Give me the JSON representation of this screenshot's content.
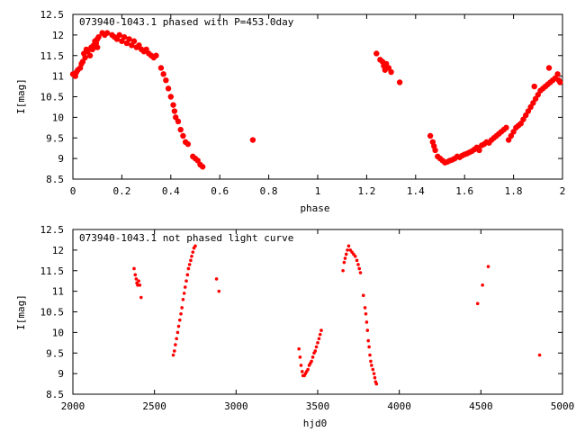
{
  "chart_data": [
    {
      "type": "scatter",
      "title": "073940-1043.1 phased with P=453.0day",
      "xlabel": "phase",
      "ylabel": "I[mag]",
      "xlim": [
        0,
        2
      ],
      "ylim": [
        12.5,
        8.5
      ],
      "y_inverted": true,
      "xticks": [
        0,
        0.2,
        0.4,
        0.6,
        0.8,
        1,
        1.2,
        1.4,
        1.6,
        1.8,
        2
      ],
      "xtick_labels": [
        "0",
        "0.2",
        "0.4",
        "0.6",
        "0.8",
        "1",
        "1.2",
        "1.4",
        "1.6",
        "1.8",
        "2"
      ],
      "yticks": [
        8.5,
        9,
        9.5,
        10,
        10.5,
        11,
        11.5,
        12,
        12.5
      ],
      "ytick_labels": [
        "8.5",
        "9",
        "9.5",
        "10",
        "10.5",
        "11",
        "11.5",
        "12",
        "12.5"
      ],
      "grid": false,
      "marker_color": "#ff0000",
      "points": [
        [
          0.0,
          11.05
        ],
        [
          0.01,
          11.0
        ],
        [
          0.015,
          11.1
        ],
        [
          0.02,
          11.15
        ],
        [
          0.03,
          11.2
        ],
        [
          0.035,
          11.3
        ],
        [
          0.04,
          11.35
        ],
        [
          0.05,
          11.45
        ],
        [
          0.045,
          11.55
        ],
        [
          0.055,
          11.65
        ],
        [
          0.06,
          11.6
        ],
        [
          0.07,
          11.5
        ],
        [
          0.075,
          11.7
        ],
        [
          0.08,
          11.65
        ],
        [
          0.085,
          11.75
        ],
        [
          0.09,
          11.85
        ],
        [
          0.095,
          11.8
        ],
        [
          0.1,
          11.9
        ],
        [
          0.1,
          11.7
        ],
        [
          0.105,
          11.95
        ],
        [
          0.12,
          12.05
        ],
        [
          0.13,
          12.0
        ],
        [
          0.14,
          12.05
        ],
        [
          0.16,
          12.0
        ],
        [
          0.17,
          11.95
        ],
        [
          0.18,
          11.9
        ],
        [
          0.19,
          12.0
        ],
        [
          0.2,
          11.85
        ],
        [
          0.21,
          11.95
        ],
        [
          0.22,
          11.8
        ],
        [
          0.23,
          11.9
        ],
        [
          0.24,
          11.75
        ],
        [
          0.25,
          11.85
        ],
        [
          0.26,
          11.7
        ],
        [
          0.27,
          11.75
        ],
        [
          0.28,
          11.65
        ],
        [
          0.29,
          11.6
        ],
        [
          0.3,
          11.65
        ],
        [
          0.31,
          11.55
        ],
        [
          0.32,
          11.5
        ],
        [
          0.33,
          11.45
        ],
        [
          0.34,
          11.5
        ],
        [
          0.36,
          11.2
        ],
        [
          0.37,
          11.05
        ],
        [
          0.38,
          10.9
        ],
        [
          0.39,
          10.7
        ],
        [
          0.4,
          10.5
        ],
        [
          0.41,
          10.3
        ],
        [
          0.415,
          10.15
        ],
        [
          0.42,
          10.0
        ],
        [
          0.43,
          9.9
        ],
        [
          0.44,
          9.7
        ],
        [
          0.45,
          9.55
        ],
        [
          0.46,
          9.4
        ],
        [
          0.47,
          9.35
        ],
        [
          0.49,
          9.05
        ],
        [
          0.5,
          9.0
        ],
        [
          0.51,
          8.95
        ],
        [
          0.52,
          8.85
        ],
        [
          0.53,
          8.8
        ],
        [
          0.735,
          9.45
        ],
        [
          1.24,
          11.55
        ],
        [
          1.255,
          11.4
        ],
        [
          1.265,
          11.35
        ],
        [
          1.27,
          11.25
        ],
        [
          1.275,
          11.15
        ],
        [
          1.28,
          11.3
        ],
        [
          1.29,
          11.2
        ],
        [
          1.3,
          11.1
        ],
        [
          1.335,
          10.85
        ],
        [
          1.46,
          9.55
        ],
        [
          1.47,
          9.4
        ],
        [
          1.475,
          9.3
        ],
        [
          1.48,
          9.2
        ],
        [
          1.49,
          9.05
        ],
        [
          1.5,
          9.0
        ],
        [
          1.51,
          8.95
        ],
        [
          1.52,
          8.9
        ],
        [
          1.53,
          8.92
        ],
        [
          1.54,
          8.95
        ],
        [
          1.55,
          8.97
        ],
        [
          1.56,
          9.0
        ],
        [
          1.57,
          9.05
        ],
        [
          1.58,
          9.03
        ],
        [
          1.59,
          9.07
        ],
        [
          1.6,
          9.1
        ],
        [
          1.61,
          9.12
        ],
        [
          1.62,
          9.15
        ],
        [
          1.63,
          9.18
        ],
        [
          1.64,
          9.22
        ],
        [
          1.65,
          9.27
        ],
        [
          1.66,
          9.2
        ],
        [
          1.67,
          9.32
        ],
        [
          1.68,
          9.35
        ],
        [
          1.69,
          9.4
        ],
        [
          1.7,
          9.38
        ],
        [
          1.71,
          9.45
        ],
        [
          1.72,
          9.5
        ],
        [
          1.73,
          9.55
        ],
        [
          1.74,
          9.6
        ],
        [
          1.75,
          9.65
        ],
        [
          1.76,
          9.7
        ],
        [
          1.77,
          9.75
        ],
        [
          1.78,
          9.45
        ],
        [
          1.79,
          9.55
        ],
        [
          1.8,
          9.65
        ],
        [
          1.81,
          9.75
        ],
        [
          1.82,
          9.8
        ],
        [
          1.83,
          9.85
        ],
        [
          1.84,
          9.95
        ],
        [
          1.85,
          10.05
        ],
        [
          1.86,
          10.15
        ],
        [
          1.87,
          10.25
        ],
        [
          1.88,
          10.35
        ],
        [
          1.89,
          10.45
        ],
        [
          1.9,
          10.55
        ],
        [
          1.91,
          10.65
        ],
        [
          1.92,
          10.7
        ],
        [
          1.93,
          10.75
        ],
        [
          1.94,
          10.8
        ],
        [
          1.95,
          10.85
        ],
        [
          1.96,
          10.9
        ],
        [
          1.97,
          10.95
        ],
        [
          1.98,
          11.05
        ],
        [
          1.99,
          10.85
        ],
        [
          1.985,
          10.9
        ],
        [
          1.885,
          10.75
        ],
        [
          1.945,
          11.2
        ]
      ]
    },
    {
      "type": "scatter",
      "title": "073940-1043.1 not phased light curve",
      "xlabel": "hjd0",
      "ylabel": "I[mag]",
      "xlim": [
        2000,
        5000
      ],
      "ylim": [
        12.5,
        8.5
      ],
      "y_inverted": true,
      "xticks": [
        2000,
        2500,
        3000,
        3500,
        4000,
        4500,
        5000
      ],
      "xtick_labels": [
        "2000",
        "2500",
        "3000",
        "3500",
        "4000",
        "4500",
        "5000"
      ],
      "yticks": [
        8.5,
        9,
        9.5,
        10,
        10.5,
        11,
        11.5,
        12,
        12.5
      ],
      "ytick_labels": [
        "8.5",
        "9",
        "9.5",
        "10",
        "10.5",
        "11",
        "11.5",
        "12",
        "12.5"
      ],
      "grid": false,
      "marker_color": "#ff0000",
      "points": [
        [
          2375,
          11.55
        ],
        [
          2382,
          11.4
        ],
        [
          2388,
          11.3
        ],
        [
          2392,
          11.2
        ],
        [
          2397,
          11.15
        ],
        [
          2403,
          11.25
        ],
        [
          2410,
          11.15
        ],
        [
          2418,
          10.85
        ],
        [
          2615,
          9.45
        ],
        [
          2622,
          9.55
        ],
        [
          2628,
          9.7
        ],
        [
          2635,
          9.85
        ],
        [
          2642,
          10.0
        ],
        [
          2648,
          10.15
        ],
        [
          2655,
          10.3
        ],
        [
          2662,
          10.45
        ],
        [
          2668,
          10.6
        ],
        [
          2675,
          10.8
        ],
        [
          2682,
          10.95
        ],
        [
          2688,
          11.1
        ],
        [
          2695,
          11.25
        ],
        [
          2702,
          11.4
        ],
        [
          2708,
          11.55
        ],
        [
          2715,
          11.65
        ],
        [
          2722,
          11.75
        ],
        [
          2728,
          11.85
        ],
        [
          2735,
          11.95
        ],
        [
          2742,
          12.05
        ],
        [
          2750,
          12.1
        ],
        [
          2880,
          11.3
        ],
        [
          2895,
          11.0
        ],
        [
          3385,
          9.6
        ],
        [
          3392,
          9.4
        ],
        [
          3398,
          9.2
        ],
        [
          3405,
          9.05
        ],
        [
          3410,
          8.95
        ],
        [
          3418,
          8.95
        ],
        [
          3425,
          9.0
        ],
        [
          3432,
          9.05
        ],
        [
          3440,
          9.1
        ],
        [
          3448,
          9.2
        ],
        [
          3455,
          9.25
        ],
        [
          3462,
          9.3
        ],
        [
          3470,
          9.4
        ],
        [
          3478,
          9.5
        ],
        [
          3485,
          9.55
        ],
        [
          3492,
          9.65
        ],
        [
          3500,
          9.75
        ],
        [
          3508,
          9.85
        ],
        [
          3515,
          9.95
        ],
        [
          3522,
          10.05
        ],
        [
          3655,
          11.5
        ],
        [
          3662,
          11.7
        ],
        [
          3668,
          11.8
        ],
        [
          3675,
          11.9
        ],
        [
          3682,
          12.0
        ],
        [
          3690,
          12.1
        ],
        [
          3700,
          12.0
        ],
        [
          3710,
          11.95
        ],
        [
          3720,
          11.9
        ],
        [
          3730,
          11.85
        ],
        [
          3740,
          11.75
        ],
        [
          3748,
          11.65
        ],
        [
          3755,
          11.55
        ],
        [
          3762,
          11.45
        ],
        [
          3780,
          10.9
        ],
        [
          3790,
          10.6
        ],
        [
          3795,
          10.45
        ],
        [
          3800,
          10.25
        ],
        [
          3805,
          10.05
        ],
        [
          3810,
          9.8
        ],
        [
          3815,
          9.65
        ],
        [
          3820,
          9.45
        ],
        [
          3825,
          9.3
        ],
        [
          3830,
          9.2
        ],
        [
          3838,
          9.1
        ],
        [
          3845,
          9.0
        ],
        [
          3850,
          8.9
        ],
        [
          3855,
          8.8
        ],
        [
          3860,
          8.75
        ],
        [
          4480,
          10.7
        ],
        [
          4510,
          11.15
        ],
        [
          4545,
          11.6
        ],
        [
          4860,
          9.45
        ]
      ]
    }
  ]
}
